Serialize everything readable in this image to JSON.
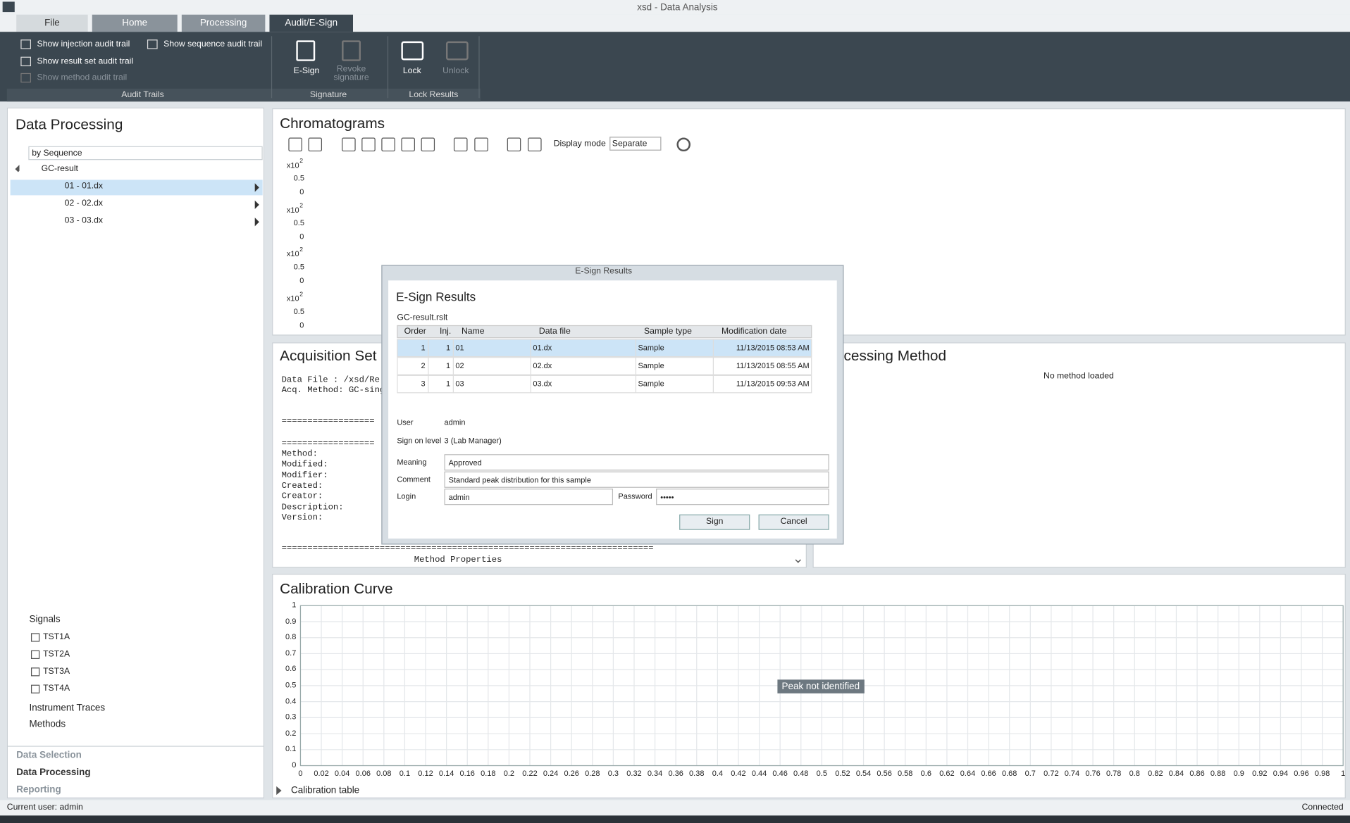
{
  "window": {
    "title": "xsd - Data Analysis"
  },
  "tabs": [
    "File",
    "Home",
    "Processing",
    "Audit/E-Sign"
  ],
  "ribbon": {
    "audit": [
      "Show injection audit trail",
      "Show sequence audit trail",
      "Show result set audit trail",
      "Show method audit trail"
    ],
    "audit_group": "Audit Trails",
    "esign": "E-Sign",
    "revoke": "Revoke signature",
    "signature_group": "Signature",
    "lock": "Lock",
    "unlock": "Unlock",
    "lock_group": "Lock Results"
  },
  "left": {
    "title": "Data Processing",
    "sort": "by Sequence",
    "root": "GC-result",
    "items": [
      "01 - 01.dx",
      "02 - 02.dx",
      "03 - 03.dx"
    ],
    "signals_label": "Signals",
    "signals": [
      "TST1A",
      "TST2A",
      "TST3A",
      "TST4A"
    ],
    "instrument": "Instrument Traces",
    "methods": "Methods",
    "nav": [
      "Data Selection",
      "Data Processing",
      "Reporting"
    ]
  },
  "chromatograms": {
    "title": "Chromatograms",
    "display_mode": "Display mode",
    "mode": "Separate",
    "exp": "x10",
    "pow": "2",
    "mid": "0.5",
    "zero": "0"
  },
  "acquisition": {
    "title": "Acquisition Set",
    "lines": [
      "Data File  : /xsd/Re",
      "Acq. Method: GC-sing",
      "==================",
      "==================",
      "Method:",
      "Modified:",
      "Modifier:",
      "Created:",
      "Creator:",
      "Description:",
      "Version:",
      "========================================================================",
      "Method Properties"
    ]
  },
  "processing": {
    "title": "cessing Method",
    "empty": "No method loaded"
  },
  "calibration": {
    "title": "Calibration Curve",
    "note": "Peak not identified",
    "table": "Calibration table",
    "xlim": [
      0,
      1
    ],
    "ylim": [
      0,
      1
    ],
    "xticks": [
      0,
      0.02,
      0.04,
      0.06,
      0.08,
      0.1,
      0.12,
      0.14,
      0.16,
      0.18,
      0.2,
      0.22,
      0.24,
      0.26,
      0.28,
      0.3,
      0.32,
      0.34,
      0.36,
      0.38,
      0.4,
      0.42,
      0.44,
      0.46,
      0.48,
      0.5,
      0.52,
      0.54,
      0.56,
      0.58,
      0.6,
      0.62,
      0.64,
      0.66,
      0.68,
      0.7,
      0.72,
      0.74,
      0.76,
      0.78,
      0.8,
      0.82,
      0.84,
      0.86,
      0.88,
      0.9,
      0.92,
      0.94,
      0.96,
      0.98,
      1
    ],
    "yticks": [
      0,
      0.1,
      0.2,
      0.3,
      0.4,
      0.5,
      0.6,
      0.7,
      0.8,
      0.9,
      1
    ]
  },
  "dialog": {
    "window_title": "E-Sign Results",
    "heading": "E-Sign Results",
    "file": "GC-result.rslt",
    "table": {
      "headers": [
        "Order",
        "Inj.",
        "Name",
        "Data file",
        "Sample type",
        "Modification date"
      ],
      "rows": [
        [
          1,
          1,
          "01",
          "01.dx",
          "Sample",
          "11/13/2015 08:53 AM"
        ],
        [
          2,
          1,
          "02",
          "02.dx",
          "Sample",
          "11/13/2015 08:55 AM"
        ],
        [
          3,
          1,
          "03",
          "03.dx",
          "Sample",
          "11/13/2015 09:53 AM"
        ]
      ]
    },
    "user_label": "User",
    "user": "admin",
    "level_label": "Sign on level",
    "level": "3 (Lab Manager)",
    "meaning_label": "Meaning",
    "meaning": "Approved",
    "comment_label": "Comment",
    "comment": "Standard peak distribution for this sample",
    "login_label": "Login",
    "login": "admin",
    "password_label": "Password",
    "password": "•••••",
    "sign": "Sign",
    "cancel": "Cancel"
  },
  "status": {
    "user": "Current user: admin",
    "connection": "Connected"
  }
}
